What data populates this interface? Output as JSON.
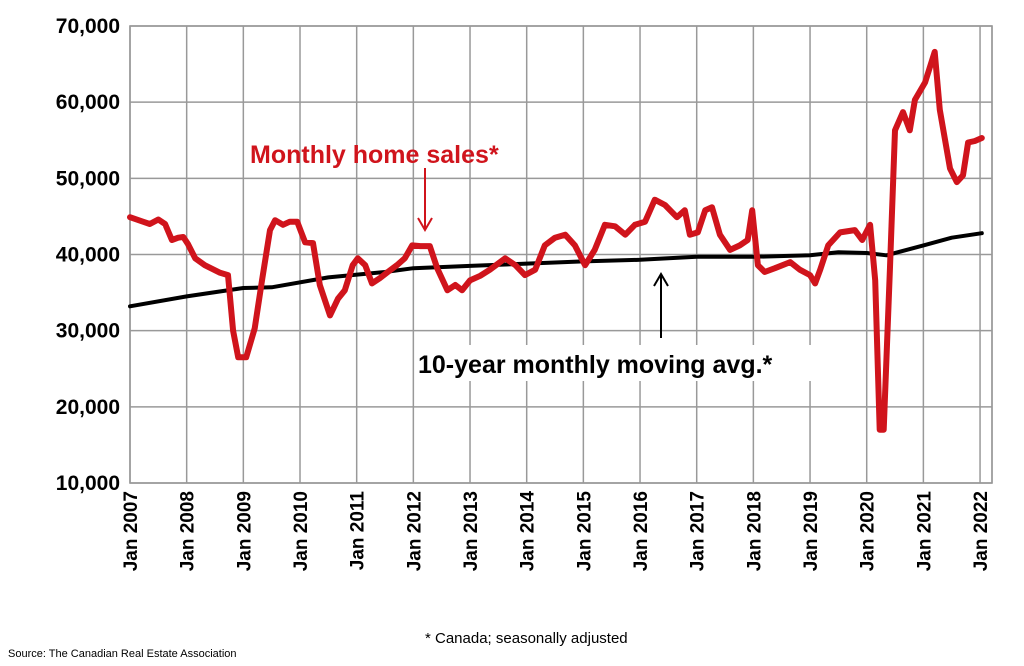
{
  "chart_data": {
    "type": "line",
    "title": "",
    "xlabel": "",
    "ylabel": "",
    "ylim": [
      10000,
      70000
    ],
    "xlim": [
      2007,
      2022.2
    ],
    "yticks": [
      10000,
      20000,
      30000,
      40000,
      50000,
      60000,
      70000
    ],
    "ytick_labels": [
      "10,000",
      "20,000",
      "30,000",
      "40,000",
      "50,000",
      "60,000",
      "70,000"
    ],
    "xtick_labels": [
      "Jan 2007",
      "Jan 2008",
      "Jan 2009",
      "Jan 2010",
      "Jan 2011",
      "Jan 2012",
      "Jan 2013",
      "Jan 2014",
      "Jan 2015",
      "Jan 2016",
      "Jan 2017",
      "Jan 2018",
      "Jan 2019",
      "Jan 2020",
      "Jan 2021",
      "Jan 2022"
    ],
    "grid": true,
    "series": [
      {
        "name": "Monthly home sales*",
        "color": "#d0141c",
        "x": [
          2007.0,
          2007.23,
          2007.35,
          2007.5,
          2007.62,
          2007.74,
          2007.85,
          2007.94,
          2008.02,
          2008.15,
          2008.32,
          2008.59,
          2008.73,
          2008.82,
          2008.91,
          2009.05,
          2009.2,
          2009.33,
          2009.47,
          2009.56,
          2009.7,
          2009.82,
          2009.95,
          2010.09,
          2010.23,
          2010.35,
          2010.53,
          2010.67,
          2010.79,
          2010.93,
          2011.02,
          2011.15,
          2011.27,
          2011.41,
          2011.55,
          2011.71,
          2011.85,
          2011.98,
          2012.12,
          2012.29,
          2012.42,
          2012.6,
          2012.74,
          2012.86,
          2013.0,
          2013.18,
          2013.35,
          2013.62,
          2013.8,
          2013.97,
          2014.15,
          2014.32,
          2014.5,
          2014.68,
          2014.85,
          2015.03,
          2015.2,
          2015.38,
          2015.56,
          2015.74,
          2015.91,
          2016.09,
          2016.26,
          2016.44,
          2016.65,
          2016.79,
          2016.88,
          2017.02,
          2017.15,
          2017.27,
          2017.41,
          2017.59,
          2017.76,
          2017.9,
          2017.98,
          2018.08,
          2018.2,
          2018.38,
          2018.65,
          2018.82,
          2019.0,
          2019.09,
          2019.18,
          2019.32,
          2019.53,
          2019.79,
          2019.92,
          2020.06,
          2020.15,
          2020.23,
          2020.3,
          2020.41,
          2020.5,
          2020.64,
          2020.76,
          2020.85,
          2021.03,
          2021.2,
          2021.29,
          2021.47,
          2021.59,
          2021.7,
          2021.79,
          2021.91,
          2022.03
        ],
        "values": [
          44900,
          44300,
          44000,
          44600,
          44000,
          41900,
          42200,
          42300,
          41400,
          39500,
          38600,
          37600,
          37300,
          30000,
          26500,
          26500,
          30300,
          36600,
          43200,
          44500,
          43900,
          44300,
          44300,
          41600,
          41500,
          36000,
          32000,
          34200,
          35300,
          38600,
          39500,
          38600,
          36200,
          36900,
          37700,
          38600,
          39500,
          41200,
          41100,
          41100,
          38200,
          35300,
          36000,
          35300,
          36600,
          37200,
          38000,
          39500,
          38600,
          37300,
          38000,
          41200,
          42200,
          42600,
          41200,
          38600,
          40600,
          43900,
          43700,
          42600,
          43900,
          44300,
          47200,
          46500,
          44900,
          45800,
          42600,
          42900,
          45800,
          46200,
          42600,
          40600,
          41200,
          41900,
          45800,
          38600,
          37700,
          38200,
          39000,
          38000,
          37300,
          36200,
          38000,
          41200,
          42900,
          43200,
          41900,
          43900,
          36600,
          17000,
          17000,
          38000,
          56300,
          58700,
          56300,
          60300,
          62600,
          66600,
          59000,
          51300,
          49500,
          50400,
          54700,
          54900,
          55300
        ]
      },
      {
        "name": "10-year monthly moving avg.*",
        "color": "#000000",
        "x": [
          2007.0,
          2008.0,
          2009.0,
          2009.5,
          2010.5,
          2011.5,
          2012.0,
          2013.0,
          2014.0,
          2015.0,
          2016.0,
          2017.0,
          2018.0,
          2019.0,
          2019.5,
          2020.0,
          2020.35,
          2021.0,
          2021.5,
          2022.03
        ],
        "values": [
          33200,
          34500,
          35600,
          35700,
          37000,
          37700,
          38200,
          38500,
          38800,
          39100,
          39300,
          39700,
          39700,
          39900,
          40300,
          40200,
          39900,
          41200,
          42200,
          42800
        ]
      }
    ],
    "annotations": {
      "sales_label": "Monthly home sales*",
      "avg_label": "10-year monthly moving avg.*"
    },
    "footnote": "* Canada; seasonally adjusted",
    "source": "Source: The Canadian Real Estate Association"
  }
}
